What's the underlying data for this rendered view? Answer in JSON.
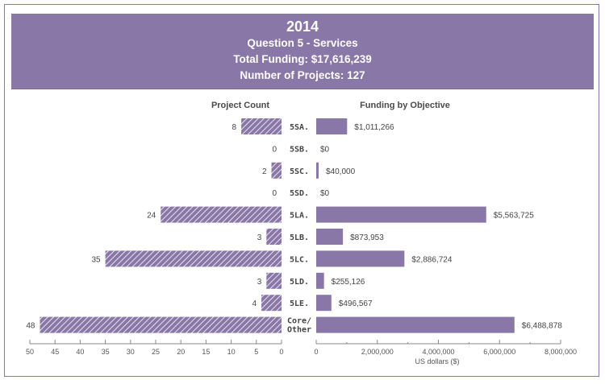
{
  "header": {
    "year": "2014",
    "subtitle": "Question 5 - Services",
    "total_funding": "Total Funding: $17,616,239",
    "num_projects": "Number of Projects: 127"
  },
  "colors": {
    "bar": "#8977a7",
    "hatch_line": "#ffffff",
    "frame": "#8a78a8"
  },
  "chart_data": [
    {
      "type": "bar",
      "orientation": "horizontal",
      "direction": "right-to-left",
      "title": "Project Count",
      "pattern": "hatched",
      "categories": [
        "5SA.",
        "5SB.",
        "5SC.",
        "5SD.",
        "5LA.",
        "5LB.",
        "5LC.",
        "5LD.",
        "5LE.",
        "Core/ Other"
      ],
      "values": [
        8,
        0,
        2,
        0,
        24,
        3,
        35,
        3,
        4,
        48
      ],
      "value_labels": [
        "8",
        "0",
        "2",
        "0",
        "24",
        "3",
        "35",
        "3",
        "4",
        "48"
      ],
      "xlim": [
        0,
        50
      ],
      "xticks": [
        "50",
        "45",
        "40",
        "35",
        "30",
        "25",
        "20",
        "15",
        "10",
        "5",
        "0"
      ],
      "xtick_values": [
        50,
        45,
        40,
        35,
        30,
        25,
        20,
        15,
        10,
        5,
        0
      ],
      "xlabel": ""
    },
    {
      "type": "bar",
      "orientation": "horizontal",
      "title": "Funding by Objective",
      "pattern": "solid",
      "categories": [
        "5SA.",
        "5SB.",
        "5SC.",
        "5SD.",
        "5LA.",
        "5LB.",
        "5LC.",
        "5LD.",
        "5LE.",
        "Core/ Other"
      ],
      "values": [
        1011266,
        0,
        40000,
        0,
        5563725,
        873953,
        2886724,
        255126,
        496567,
        6488878
      ],
      "value_labels": [
        "$1,011,266",
        "$0",
        "$40,000",
        "$0",
        "$5,563,725",
        "$873,953",
        "$2,886,724",
        "$255,126",
        "$496,567",
        "$6,488,878"
      ],
      "xlim": [
        0,
        8000000
      ],
      "xticks": [
        "0",
        "2,000,000",
        "4,000,000",
        "6,000,000",
        "8,000,000"
      ],
      "xtick_values": [
        0,
        2000000,
        4000000,
        6000000,
        8000000
      ],
      "minor_tick_values": [
        1000000,
        3000000,
        5000000,
        7000000
      ],
      "xlabel": "US dollars ($)"
    }
  ]
}
